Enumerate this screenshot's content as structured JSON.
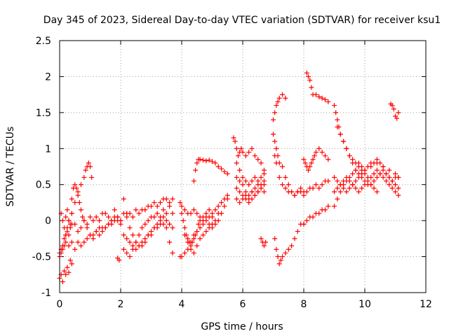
{
  "chart_data": {
    "type": "scatter",
    "title": "Day 345 of 2023, Sidereal Day-to-day VTEC variation (SDTVAR) for receiver ksu1",
    "xlabel": "GPS time / hours",
    "ylabel": "SDTVAR / TECUs",
    "xlim": [
      0,
      12
    ],
    "ylim": [
      -1,
      2.5
    ],
    "xticks": [
      0,
      2,
      4,
      6,
      8,
      10,
      12
    ],
    "yticks": [
      -1,
      -0.5,
      0,
      0.5,
      1,
      1.5,
      2,
      2.5
    ],
    "xtick_labels": [
      "0",
      "2",
      "4",
      "6",
      "8",
      "10",
      "12"
    ],
    "ytick_labels": [
      "-1",
      "-0.5",
      "0",
      "0.5",
      "1",
      "1.5",
      "2",
      "2.5"
    ],
    "grid": true,
    "marker": "+",
    "color": "#ff0000",
    "series": [
      {
        "name": "track-01",
        "x": [
          0.0,
          0.05,
          0.1,
          0.15,
          0.2,
          0.25,
          0.3,
          0.35,
          0.4,
          0.5,
          0.6,
          0.7,
          0.8,
          0.9,
          1.0,
          1.1,
          1.2,
          1.3,
          1.4,
          1.5,
          1.6,
          1.7,
          1.8,
          1.9,
          2.0
        ],
        "y": [
          -0.45,
          -0.4,
          -0.35,
          -0.25,
          -0.2,
          -0.15,
          -0.2,
          -0.1,
          -0.05,
          -0.05,
          -0.15,
          -0.1,
          0.0,
          -0.05,
          0.05,
          0.0,
          0.05,
          0.0,
          0.1,
          0.1,
          0.05,
          0.0,
          0.15,
          0.05,
          0.0
        ]
      },
      {
        "name": "track-02",
        "x": [
          0.0,
          0.05,
          0.1,
          0.15,
          0.2,
          0.25,
          0.3,
          0.35,
          0.4
        ],
        "y": [
          -0.8,
          -0.75,
          -0.85,
          -0.7,
          -0.75,
          -0.65,
          -0.72,
          -0.55,
          -0.6
        ]
      },
      {
        "name": "track-03",
        "x": [
          0.2,
          0.25,
          0.3,
          0.4,
          0.5,
          0.6,
          0.7,
          0.8,
          0.85,
          0.9,
          0.95,
          1.0,
          1.05
        ],
        "y": [
          -0.2,
          -0.1,
          0.0,
          0.1,
          0.25,
          0.4,
          0.5,
          0.6,
          0.7,
          0.75,
          0.8,
          0.75,
          0.6
        ]
      },
      {
        "name": "track-04",
        "x": [
          0.4,
          0.45,
          0.5,
          0.55,
          0.6,
          0.65,
          0.7,
          0.75,
          0.8,
          0.9,
          1.0,
          1.1,
          1.2,
          1.3,
          1.4,
          1.5,
          1.6,
          1.7,
          1.8,
          1.9,
          2.0
        ],
        "y": [
          0.3,
          0.45,
          0.5,
          0.45,
          0.35,
          0.25,
          0.15,
          0.05,
          0.0,
          -0.1,
          -0.2,
          -0.25,
          -0.15,
          -0.2,
          -0.1,
          -0.1,
          -0.05,
          0.0,
          0.05,
          0.0,
          -0.05
        ]
      },
      {
        "name": "track-05",
        "x": [
          0.0,
          0.05,
          0.1,
          0.15,
          0.2,
          0.3,
          0.4,
          0.5,
          0.6,
          0.7,
          0.8,
          0.9,
          1.0,
          1.1,
          1.2,
          1.3,
          1.4,
          1.5,
          1.6,
          1.7,
          1.8,
          1.9,
          2.0
        ],
        "y": [
          -0.5,
          -0.45,
          -0.4,
          -0.35,
          -0.3,
          -0.35,
          -0.3,
          -0.4,
          -0.3,
          -0.35,
          -0.3,
          -0.25,
          -0.2,
          -0.2,
          -0.15,
          -0.1,
          -0.15,
          -0.1,
          -0.05,
          -0.05,
          0.0,
          0.05,
          0.0
        ]
      },
      {
        "name": "track-06",
        "x": [
          0.05,
          0.1,
          0.15,
          0.2,
          0.25,
          0.3,
          0.35,
          0.4
        ],
        "y": [
          0.1,
          0.0,
          -0.1,
          0.05,
          0.15,
          0.0,
          -0.05,
          0.1
        ]
      },
      {
        "name": "track-07",
        "x": [
          1.9,
          1.95
        ],
        "y": [
          -0.52,
          -0.55
        ]
      },
      {
        "name": "track-08",
        "x": [
          2.1,
          2.2,
          2.3,
          2.4,
          2.5,
          2.6,
          2.7,
          2.8,
          2.9,
          3.0,
          3.1,
          3.2,
          3.3,
          3.4,
          3.5,
          3.6,
          3.7
        ],
        "y": [
          0.3,
          0.1,
          -0.1,
          -0.2,
          -0.3,
          -0.35,
          -0.35,
          -0.3,
          -0.2,
          -0.2,
          -0.1,
          -0.05,
          0.0,
          0.05,
          -0.1,
          -0.3,
          -0.45
        ]
      },
      {
        "name": "track-09",
        "x": [
          2.1,
          2.2,
          2.3,
          2.4,
          2.5,
          2.6,
          2.7,
          2.8,
          2.9,
          3.0,
          3.1,
          3.2,
          3.3,
          3.4,
          3.5,
          3.6,
          3.7
        ],
        "y": [
          0.1,
          0.05,
          0.1,
          0.05,
          0.15,
          0.1,
          0.15,
          0.15,
          0.2,
          0.2,
          0.25,
          0.2,
          0.25,
          0.3,
          0.3,
          0.25,
          0.3
        ]
      },
      {
        "name": "track-10",
        "x": [
          2.1,
          2.2,
          2.3,
          2.4,
          2.5,
          2.6,
          2.7,
          2.8,
          2.9,
          3.0,
          3.1,
          3.2,
          3.3,
          3.4,
          3.5,
          3.6,
          3.7
        ],
        "y": [
          -0.4,
          -0.45,
          -0.5,
          -0.4,
          -0.3,
          -0.2,
          -0.1,
          -0.05,
          0.0,
          0.05,
          0.05,
          0.1,
          0.05,
          0.15,
          0.1,
          0.2,
          0.1
        ]
      },
      {
        "name": "track-11",
        "x": [
          2.1,
          2.2,
          2.3,
          2.4,
          2.5,
          2.6,
          2.7,
          2.8,
          2.9,
          3.0,
          3.1,
          3.2,
          3.3,
          3.4,
          3.5,
          3.6,
          3.7
        ],
        "y": [
          -0.2,
          -0.25,
          -0.3,
          -0.35,
          -0.4,
          -0.35,
          -0.3,
          -0.25,
          -0.2,
          -0.15,
          -0.1,
          -0.1,
          -0.05,
          -0.05,
          0.0,
          -0.05,
          -0.1
        ]
      },
      {
        "name": "track-12",
        "x": [
          3.95,
          4.0,
          4.1,
          4.2,
          4.3,
          4.4,
          4.5,
          4.6,
          4.7,
          4.8,
          4.9,
          5.0,
          5.1,
          5.2,
          5.3,
          5.4,
          5.5
        ],
        "y": [
          -0.5,
          -0.5,
          -0.45,
          -0.4,
          -0.3,
          -0.2,
          -0.15,
          -0.1,
          -0.05,
          0.0,
          0.05,
          0.1,
          0.15,
          0.2,
          0.25,
          0.3,
          0.35
        ]
      },
      {
        "name": "track-13",
        "x": [
          3.95,
          4.0,
          4.05,
          4.1,
          4.15,
          4.2,
          4.25,
          4.3,
          4.35,
          4.4,
          4.45,
          4.5,
          4.55,
          4.6,
          4.7,
          4.8,
          4.9,
          5.0,
          5.1,
          5.2
        ],
        "y": [
          0.25,
          0.1,
          0.0,
          -0.1,
          -0.2,
          -0.25,
          -0.3,
          -0.35,
          -0.3,
          -0.25,
          -0.2,
          -0.15,
          -0.05,
          0.0,
          0.05,
          0.1,
          0.15,
          0.05,
          0.0,
          0.1
        ]
      },
      {
        "name": "track-14",
        "x": [
          4.0,
          4.1,
          4.2,
          4.3,
          4.4,
          4.5,
          4.6,
          4.7,
          4.8,
          4.9,
          5.0,
          5.1,
          5.2,
          5.3,
          5.4,
          5.5
        ],
        "y": [
          0.2,
          0.15,
          0.1,
          0.1,
          0.15,
          0.1,
          0.05,
          0.0,
          0.05,
          -0.05,
          -0.1,
          -0.05,
          0.0,
          0.1,
          0.2,
          0.3
        ]
      },
      {
        "name": "track-15",
        "x": [
          4.4,
          4.45,
          4.5,
          4.55,
          4.6,
          4.7,
          4.8,
          4.9,
          5.0,
          5.1,
          5.2,
          5.3,
          5.4,
          5.5
        ],
        "y": [
          0.55,
          0.7,
          0.8,
          0.85,
          0.85,
          0.84,
          0.83,
          0.84,
          0.82,
          0.8,
          0.75,
          0.72,
          0.68,
          0.65
        ]
      },
      {
        "name": "track-16",
        "x": [
          4.1,
          4.2,
          4.3,
          4.4,
          4.5,
          4.6,
          4.7,
          4.8,
          4.9,
          5.0
        ],
        "y": [
          -0.2,
          -0.3,
          -0.4,
          -0.45,
          -0.35,
          -0.25,
          -0.2,
          -0.15,
          -0.1,
          -0.05
        ]
      },
      {
        "name": "track-17",
        "x": [
          5.7,
          5.75,
          5.8,
          5.85,
          5.9,
          5.95,
          6.0,
          6.1,
          6.2,
          6.3,
          6.4,
          6.5,
          6.6,
          6.7
        ],
        "y": [
          1.15,
          1.1,
          1.0,
          0.9,
          0.95,
          1.0,
          0.95,
          0.9,
          0.95,
          1.0,
          0.9,
          0.85,
          0.8,
          0.7
        ]
      },
      {
        "name": "track-18",
        "x": [
          5.8,
          5.9,
          6.0,
          6.1,
          6.2,
          6.3,
          6.4,
          6.5,
          6.6,
          6.7
        ],
        "y": [
          0.8,
          0.7,
          0.6,
          0.55,
          0.5,
          0.55,
          0.6,
          0.5,
          0.45,
          0.4
        ]
      },
      {
        "name": "track-19",
        "x": [
          5.8,
          5.9,
          6.0,
          6.1,
          6.2,
          6.3,
          6.4,
          6.5,
          6.6,
          6.7
        ],
        "y": [
          0.6,
          0.55,
          0.5,
          0.4,
          0.35,
          0.4,
          0.35,
          0.4,
          0.5,
          0.55
        ]
      },
      {
        "name": "track-20",
        "x": [
          5.8,
          5.9,
          6.0,
          6.1,
          6.2,
          6.3,
          6.4,
          6.5,
          6.6,
          6.7
        ],
        "y": [
          0.3,
          0.25,
          0.3,
          0.35,
          0.3,
          0.4,
          0.45,
          0.55,
          0.6,
          0.65
        ]
      },
      {
        "name": "track-21",
        "x": [
          5.8,
          5.9,
          6.0,
          6.1,
          6.2,
          6.3,
          6.4,
          6.5,
          6.6,
          6.7
        ],
        "y": [
          0.45,
          0.4,
          0.35,
          0.3,
          0.25,
          0.3,
          0.35,
          0.4,
          0.45,
          0.5
        ]
      },
      {
        "name": "track-22",
        "x": [
          6.6,
          6.65,
          6.7,
          6.75
        ],
        "y": [
          -0.25,
          -0.3,
          -0.35,
          -0.3
        ]
      },
      {
        "name": "track-23",
        "x": [
          7.05,
          7.1,
          7.15,
          7.2,
          7.25,
          7.3,
          7.4,
          7.5,
          7.6,
          7.7,
          7.8,
          7.9,
          8.0
        ],
        "y": [
          -0.25,
          -0.4,
          -0.5,
          -0.6,
          -0.55,
          -0.5,
          -0.45,
          -0.4,
          -0.35,
          -0.25,
          -0.15,
          -0.05,
          -0.05
        ]
      },
      {
        "name": "track-24",
        "x": [
          8.0,
          8.1,
          8.2,
          8.3,
          8.4,
          8.5,
          8.6,
          8.7,
          8.8
        ],
        "y": [
          -0.05,
          0.0,
          0.05,
          0.05,
          0.1,
          0.1,
          0.15,
          0.15,
          0.2
        ]
      },
      {
        "name": "track-25",
        "x": [
          7.0,
          7.05,
          7.1,
          7.15,
          7.2,
          7.3,
          7.4
        ],
        "y": [
          1.4,
          1.5,
          1.6,
          1.65,
          1.7,
          1.75,
          1.7
        ]
      },
      {
        "name": "track-26",
        "x": [
          7.0,
          7.05,
          7.1,
          7.15,
          7.2,
          7.3,
          7.4,
          7.5,
          7.6,
          7.7,
          7.8,
          7.9,
          8.0
        ],
        "y": [
          1.2,
          1.1,
          1.0,
          0.9,
          0.8,
          0.75,
          0.6,
          0.5,
          0.4,
          0.35,
          0.4,
          0.4,
          0.35
        ]
      },
      {
        "name": "track-27",
        "x": [
          7.05,
          7.1,
          7.2,
          7.3,
          7.4,
          7.5,
          7.6,
          7.7,
          7.8,
          7.9,
          8.0,
          8.1,
          8.2,
          8.3,
          8.4,
          8.5,
          8.6,
          8.7,
          8.8
        ],
        "y": [
          0.9,
          0.8,
          0.6,
          0.5,
          0.45,
          0.4,
          0.4,
          0.35,
          0.4,
          0.45,
          0.4,
          0.4,
          0.45,
          0.45,
          0.5,
          0.45,
          0.5,
          0.55,
          0.55
        ]
      },
      {
        "name": "track-28",
        "x": [
          8.1,
          8.15,
          8.2,
          8.25,
          8.3,
          8.4,
          8.5,
          8.6,
          8.7,
          8.8
        ],
        "y": [
          2.05,
          2.0,
          1.95,
          1.85,
          1.75,
          1.75,
          1.72,
          1.7,
          1.68,
          1.65
        ]
      },
      {
        "name": "track-29",
        "x": [
          8.0,
          8.05,
          8.1,
          8.15,
          8.2,
          8.25,
          8.3,
          8.35,
          8.4,
          8.5,
          8.6,
          8.7,
          8.8
        ],
        "y": [
          0.85,
          0.8,
          0.75,
          0.7,
          0.75,
          0.8,
          0.85,
          0.9,
          0.95,
          1.0,
          0.95,
          0.9,
          0.85
        ]
      },
      {
        "name": "track-30",
        "x": [
          9.0,
          9.05,
          9.1,
          9.15,
          9.2,
          9.3,
          9.4,
          9.5,
          9.6,
          9.7,
          9.8,
          9.9,
          10.0,
          10.1,
          10.2,
          10.3,
          10.4,
          10.5,
          10.6,
          10.7,
          10.8,
          10.9,
          11.0,
          11.1
        ],
        "y": [
          1.6,
          1.5,
          1.4,
          1.3,
          1.2,
          1.1,
          1.0,
          0.9,
          0.85,
          0.8,
          0.8,
          0.75,
          0.7,
          0.75,
          0.8,
          0.8,
          0.85,
          0.8,
          0.75,
          0.65,
          0.6,
          0.55,
          0.6,
          0.6
        ]
      },
      {
        "name": "track-31",
        "x": [
          9.1,
          9.2,
          9.3,
          9.4,
          9.5,
          9.6,
          9.7,
          9.8,
          9.9,
          10.0,
          10.1,
          10.2,
          10.3,
          10.4,
          10.5,
          10.6,
          10.7,
          10.8,
          10.9,
          11.0,
          11.1
        ],
        "y": [
          1.3,
          1.2,
          1.1,
          1.0,
          0.9,
          0.8,
          0.7,
          0.65,
          0.6,
          0.55,
          0.5,
          0.5,
          0.55,
          0.6,
          0.65,
          0.7,
          0.65,
          0.6,
          0.55,
          0.5,
          0.45
        ]
      },
      {
        "name": "track-32",
        "x": [
          9.0,
          9.1,
          9.2,
          9.3,
          9.4,
          9.5,
          9.6,
          9.7,
          9.8,
          9.9,
          10.0,
          10.1,
          10.2,
          10.3,
          10.4,
          10.5,
          10.6,
          10.7,
          10.8,
          10.9,
          11.0,
          11.1
        ],
        "y": [
          0.4,
          0.45,
          0.5,
          0.55,
          0.6,
          0.55,
          0.5,
          0.45,
          0.4,
          0.45,
          0.5,
          0.55,
          0.6,
          0.65,
          0.7,
          0.65,
          0.6,
          0.55,
          0.5,
          0.45,
          0.4,
          0.35
        ]
      },
      {
        "name": "track-33",
        "x": [
          9.0,
          9.1,
          9.2,
          9.3,
          9.4,
          9.5,
          9.6,
          9.7,
          9.8,
          9.9,
          10.0,
          10.1,
          10.2,
          10.3,
          10.4
        ],
        "y": [
          0.2,
          0.3,
          0.4,
          0.5,
          0.55,
          0.6,
          0.65,
          0.7,
          0.75,
          0.7,
          0.65,
          0.6,
          0.5,
          0.45,
          0.4
        ]
      },
      {
        "name": "track-34",
        "x": [
          9.0,
          9.1,
          9.2,
          9.3,
          9.4,
          9.5,
          9.6,
          9.7,
          9.8,
          9.9,
          10.0,
          10.2,
          10.4,
          10.6,
          10.8,
          11.0,
          11.1
        ],
        "y": [
          0.6,
          0.55,
          0.5,
          0.45,
          0.4,
          0.45,
          0.5,
          0.55,
          0.6,
          0.65,
          0.7,
          0.75,
          0.8,
          0.75,
          0.7,
          0.65,
          0.6
        ]
      },
      {
        "name": "track-35",
        "x": [
          10.85,
          10.9,
          10.95,
          11.0,
          11.05,
          11.1
        ],
        "y": [
          1.62,
          1.6,
          1.55,
          1.45,
          1.42,
          1.5
        ]
      }
    ]
  }
}
